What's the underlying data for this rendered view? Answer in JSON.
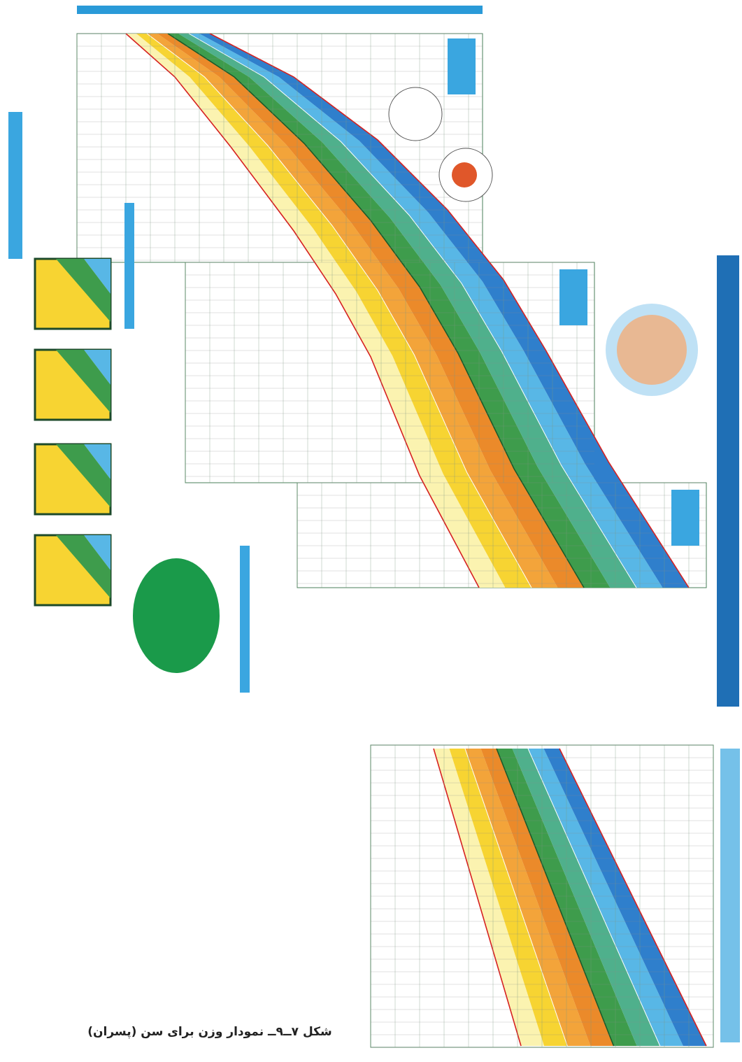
{
  "caption": "شکل ۷ــ۹ــ نمودار وزن برای سن (پسران)"
}
